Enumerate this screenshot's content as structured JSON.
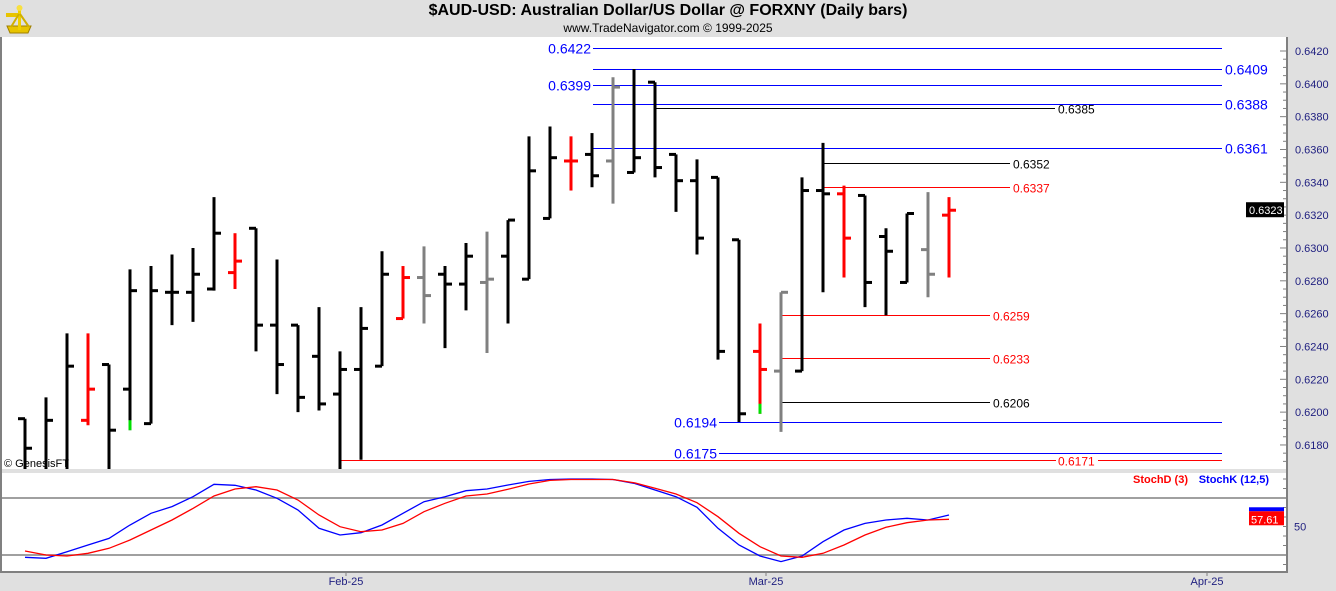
{
  "header": {
    "title": "$AUD-USD:  Australian Dollar/US Dollar @ FORXNY  (Daily bars)",
    "subtitle": "www.TradeNavigator.com © 1999-2025",
    "logo": "sextant-logo"
  },
  "watermark": "© GenesisFT",
  "colors": {
    "up": "#000000",
    "down": "#ff0000",
    "neutral": "#808080",
    "marker": "#00e000",
    "blue": "#0000ff",
    "stochK": "#0000ff",
    "stochD": "#ff0000"
  },
  "chart_data": [
    {
      "type": "ohlc",
      "title": "$AUD-USD:  Australian Dollar/US Dollar @ FORXNY  (Daily bars)",
      "ylim": [
        0.6165,
        0.6425
      ],
      "y_ticks": [
        "0.6420",
        "0.6400",
        "0.6380",
        "0.6360",
        "0.6340",
        "0.6320",
        "0.6300",
        "0.6280",
        "0.6260",
        "0.6240",
        "0.6220",
        "0.6200",
        "0.6180"
      ],
      "x_ticks": [
        {
          "label": "Feb-25",
          "bar": 15
        },
        {
          "label": "Mar-25",
          "bar": 35
        },
        {
          "label": "Apr-25",
          "bar": 56
        }
      ],
      "last_price": "0.6323",
      "bars": [
        {
          "o": 0.6196,
          "h": 0.6196,
          "l": 0.6165,
          "c": 0.6178,
          "color": "up"
        },
        {
          "o": null,
          "h": 0.6209,
          "l": 0.6165,
          "c": 0.6195,
          "color": "up"
        },
        {
          "o": null,
          "h": 0.6248,
          "l": 0.6165,
          "c": 0.6228,
          "color": "up"
        },
        {
          "o": 0.6195,
          "h": 0.6248,
          "l": 0.6192,
          "c": 0.6214,
          "color": "down"
        },
        {
          "o": 0.6229,
          "h": 0.6229,
          "l": 0.6165,
          "c": 0.6189,
          "color": "up"
        },
        {
          "o": 0.6214,
          "h": 0.6287,
          "l": 0.6189,
          "c": 0.6274,
          "color": "up",
          "marker": true
        },
        {
          "o": 0.6193,
          "h": 0.6289,
          "l": 0.6193,
          "c": 0.6274,
          "color": "up"
        },
        {
          "o": 0.6273,
          "h": 0.6296,
          "l": 0.6253,
          "c": 0.6273,
          "color": "up"
        },
        {
          "o": 0.6273,
          "h": 0.63,
          "l": 0.6255,
          "c": 0.6284,
          "color": "up"
        },
        {
          "o": 0.6275,
          "h": 0.6331,
          "l": 0.6274,
          "c": 0.6309,
          "color": "up"
        },
        {
          "o": 0.6285,
          "h": 0.6309,
          "l": 0.6275,
          "c": 0.6292,
          "color": "down"
        },
        {
          "o": 0.6312,
          "h": 0.6312,
          "l": 0.6237,
          "c": 0.6253,
          "color": "up"
        },
        {
          "o": 0.6253,
          "h": 0.6293,
          "l": 0.6211,
          "c": 0.6229,
          "color": "up"
        },
        {
          "o": 0.6253,
          "h": 0.6253,
          "l": 0.62,
          "c": 0.6209,
          "color": "up"
        },
        {
          "o": 0.6234,
          "h": 0.6264,
          "l": 0.6201,
          "c": 0.6205,
          "color": "up"
        },
        {
          "o": 0.6211,
          "h": 0.6237,
          "l": 0.6165,
          "c": 0.6226,
          "color": "up"
        },
        {
          "o": 0.6226,
          "h": 0.6264,
          "l": 0.6171,
          "c": 0.6251,
          "color": "up"
        },
        {
          "o": 0.6228,
          "h": 0.6298,
          "l": 0.6228,
          "c": 0.6284,
          "color": "up"
        },
        {
          "o": 0.6257,
          "h": 0.6289,
          "l": 0.6257,
          "c": 0.6282,
          "color": "down"
        },
        {
          "o": 0.6282,
          "h": 0.6301,
          "l": 0.6254,
          "c": 0.6271,
          "color": "neutral"
        },
        {
          "o": 0.6284,
          "h": 0.6289,
          "l": 0.6239,
          "c": 0.6278,
          "color": "up"
        },
        {
          "o": 0.6278,
          "h": 0.6303,
          "l": 0.6262,
          "c": 0.6295,
          "color": "up"
        },
        {
          "o": 0.6279,
          "h": 0.631,
          "l": 0.6236,
          "c": 0.6281,
          "color": "neutral"
        },
        {
          "o": 0.6295,
          "h": 0.6317,
          "l": 0.6254,
          "c": 0.6317,
          "color": "up"
        },
        {
          "o": 0.6281,
          "h": 0.6368,
          "l": 0.6281,
          "c": 0.6347,
          "color": "up"
        },
        {
          "o": 0.6318,
          "h": 0.6374,
          "l": 0.6318,
          "c": 0.6355,
          "color": "up"
        },
        {
          "o": 0.6353,
          "h": 0.6368,
          "l": 0.6335,
          "c": 0.6353,
          "color": "down"
        },
        {
          "o": 0.6357,
          "h": 0.637,
          "l": 0.6337,
          "c": 0.6344,
          "color": "up"
        },
        {
          "o": 0.6353,
          "h": 0.6404,
          "l": 0.6327,
          "c": 0.6398,
          "color": "neutral"
        },
        {
          "o": 0.6346,
          "h": 0.6409,
          "l": 0.6346,
          "c": 0.6355,
          "color": "up"
        },
        {
          "o": 0.6401,
          "h": 0.6401,
          "l": 0.6343,
          "c": 0.6349,
          "color": "up"
        },
        {
          "o": 0.6357,
          "h": 0.6357,
          "l": 0.6322,
          "c": 0.6341,
          "color": "up"
        },
        {
          "o": 0.6341,
          "h": 0.6354,
          "l": 0.6296,
          "c": 0.6306,
          "color": "up"
        },
        {
          "o": 0.6343,
          "h": 0.6343,
          "l": 0.6232,
          "c": 0.6237,
          "color": "up"
        },
        {
          "o": 0.6305,
          "h": 0.6305,
          "l": 0.6194,
          "c": 0.6199,
          "color": "up"
        },
        {
          "o": 0.6237,
          "h": 0.6254,
          "l": 0.6199,
          "c": 0.6226,
          "color": "down",
          "marker": true
        },
        {
          "o": 0.6225,
          "h": 0.6273,
          "l": 0.6188,
          "c": 0.6273,
          "color": "neutral"
        },
        {
          "o": 0.6225,
          "h": 0.6343,
          "l": 0.6225,
          "c": 0.6335,
          "color": "up"
        },
        {
          "o": 0.6335,
          "h": 0.6364,
          "l": 0.6273,
          "c": 0.6333,
          "color": "up"
        },
        {
          "o": 0.6333,
          "h": 0.6338,
          "l": 0.6282,
          "c": 0.6306,
          "color": "down"
        },
        {
          "o": 0.6332,
          "h": 0.6332,
          "l": 0.6264,
          "c": 0.6279,
          "color": "up"
        },
        {
          "o": 0.6307,
          "h": 0.6312,
          "l": 0.6259,
          "c": 0.6298,
          "color": "up"
        },
        {
          "o": 0.6279,
          "h": 0.6321,
          "l": 0.6279,
          "c": 0.6321,
          "color": "up"
        },
        {
          "o": 0.6299,
          "h": 0.6334,
          "l": 0.627,
          "c": 0.6284,
          "color": "neutral"
        },
        {
          "o": 0.632,
          "h": 0.6331,
          "l": 0.6282,
          "c": 0.6323,
          "color": "down"
        }
      ],
      "levels": [
        {
          "price": 0.6422,
          "label": "0.6422",
          "color": "blue",
          "from_bar": 27,
          "label_side": "left"
        },
        {
          "price": 0.6409,
          "label": "0.6409",
          "color": "blue",
          "from_bar": 27,
          "label_side": "right"
        },
        {
          "price": 0.6399,
          "label": "0.6399",
          "color": "blue",
          "from_bar": 27,
          "label_side": "left"
        },
        {
          "price": 0.6388,
          "label": "0.6388",
          "color": "blue",
          "from_bar": 27,
          "label_side": "right"
        },
        {
          "price": 0.6385,
          "label": "0.6385",
          "color": "black",
          "from_bar": 30,
          "label_side": "right"
        },
        {
          "price": 0.6361,
          "label": "0.6361",
          "color": "blue",
          "from_bar": 27,
          "label_side": "right"
        },
        {
          "price": 0.6352,
          "label": "0.6352",
          "color": "black",
          "from_bar": 38,
          "label_side": "right"
        },
        {
          "price": 0.6337,
          "label": "0.6337",
          "color": "red",
          "from_bar": 38,
          "label_side": "right"
        },
        {
          "price": 0.6259,
          "label": "0.6259",
          "color": "red",
          "from_bar": 36,
          "label_side": "right"
        },
        {
          "price": 0.6233,
          "label": "0.6233",
          "color": "red",
          "from_bar": 36,
          "label_side": "right"
        },
        {
          "price": 0.6206,
          "label": "0.6206",
          "color": "black",
          "from_bar": 36,
          "label_side": "right"
        },
        {
          "price": 0.6194,
          "label": "0.6194",
          "color": "blue",
          "from_bar": 33,
          "label_side": "left"
        },
        {
          "price": 0.6175,
          "label": "0.6175",
          "color": "blue",
          "from_bar": 33,
          "label_side": "left"
        },
        {
          "price": 0.6171,
          "label": "0.6171",
          "color": "red",
          "from_bar": 15,
          "label_side": "right"
        }
      ]
    },
    {
      "type": "line",
      "ylim": [
        0,
        100
      ],
      "guides": [
        20,
        80
      ],
      "y_tick_label": "50",
      "last_value": "57.61",
      "series": [
        {
          "name": "StochD (3)",
          "color": "stochD",
          "values": [
            24.2,
            20,
            18.9,
            21.8,
            27.1,
            35.8,
            46.3,
            56.8,
            69.1,
            82.1,
            89.5,
            91.9,
            88.4,
            77.9,
            62.1,
            49.8,
            44.5,
            46.3,
            53.3,
            65.6,
            74.4,
            82.1,
            84.2,
            89.2,
            94.7,
            98.5,
            99.5,
            99.5,
            99.5,
            96.1,
            90.2,
            84.2,
            75.1,
            60.3,
            42.8,
            28.7,
            18.9,
            17.6,
            21.8,
            30.5,
            41.1,
            49.2,
            54,
            56.8,
            57.61
          ]
        },
        {
          "name": "StochK (12,5)",
          "color": "stochK",
          "values": [
            17.6,
            16.5,
            23.5,
            30.5,
            37.5,
            51.6,
            63.9,
            70.9,
            81.4,
            94.4,
            93.4,
            88.4,
            79.7,
            67.4,
            48.1,
            41.1,
            43.5,
            51.6,
            63.9,
            76.1,
            81.4,
            87.7,
            89.5,
            93.7,
            97.5,
            99.5,
            100,
            100,
            99.5,
            95.5,
            88.4,
            81.4,
            70.2,
            48.1,
            30.5,
            18.9,
            13,
            18.9,
            34,
            46.3,
            53.3,
            56.8,
            58.6,
            56.8,
            62.1
          ]
        }
      ]
    }
  ]
}
